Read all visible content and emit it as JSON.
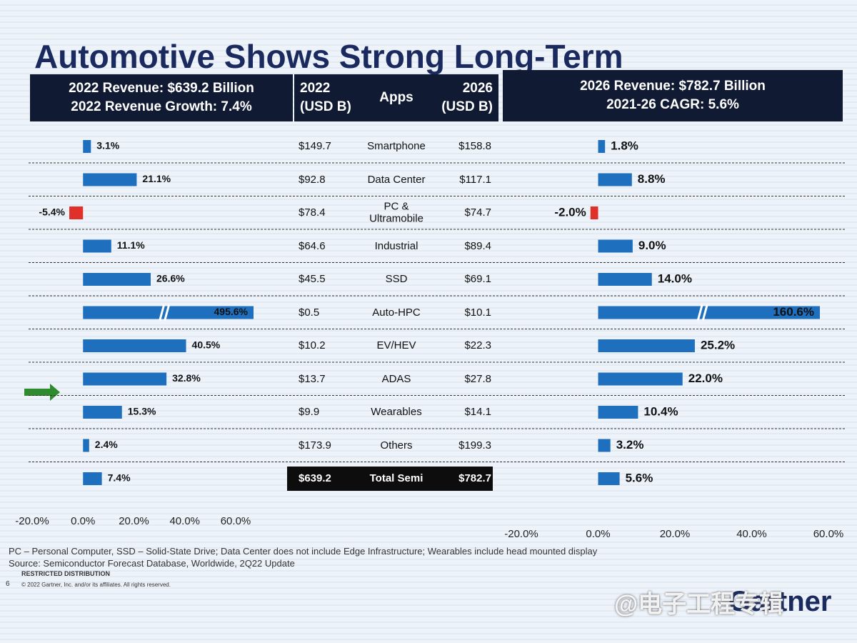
{
  "title": "Automotive Shows Strong Long-Term",
  "table": {
    "header": [
      [
        "2022",
        "(USD B)"
      ],
      "Apps",
      [
        "2026",
        "(USD B)"
      ]
    ],
    "rows": [
      [
        "$149.7",
        "Smartphone",
        "$158.8"
      ],
      [
        "$92.8",
        "Data Center",
        "$117.1"
      ],
      [
        "$78.4",
        "PC & Ultramobile",
        "$74.7"
      ],
      [
        "$64.6",
        "Industrial",
        "$89.4"
      ],
      [
        "$45.5",
        "SSD",
        "$69.1"
      ],
      [
        "$0.5",
        "Auto-HPC",
        "$10.1"
      ],
      [
        "$10.2",
        "EV/HEV",
        "$22.3"
      ],
      [
        "$13.7",
        "ADAS",
        "$27.8"
      ],
      [
        "$9.9",
        "Wearables",
        "$14.1"
      ],
      [
        "$173.9",
        "Others",
        "$199.3"
      ],
      [
        "$639.2",
        "Total Semi",
        "$782.7"
      ]
    ]
  },
  "chart_data": [
    {
      "type": "hbar",
      "title": "2022 Revenue: $639.2 Billion",
      "subtitle": "2022 Revenue Growth: 7.4%",
      "values": [
        3.1,
        21.1,
        -5.4,
        11.1,
        26.6,
        495.6,
        40.5,
        32.8,
        15.3,
        2.4,
        7.4
      ],
      "value_labels": [
        "3.1%",
        "21.1%",
        "-5.4%",
        "11.1%",
        "26.6%",
        "495.6%",
        "40.5%",
        "32.8%",
        "15.3%",
        "2.4%",
        "7.4%"
      ],
      "color": "#1f6fbf",
      "negative_color": "#e0302a",
      "xlim": [
        -20,
        60
      ],
      "xticks": [
        {
          "value": -20,
          "label": "-20.0%"
        },
        {
          "value": 0,
          "label": "0.0%"
        },
        {
          "value": 20,
          "label": "20.0%"
        },
        {
          "value": 40,
          "label": "40.0%"
        },
        {
          "value": 60,
          "label": "60.0%"
        }
      ]
    },
    {
      "type": "hbar",
      "title": "2026 Revenue: $782.7 Billion",
      "subtitle": "2021-26 CAGR: 5.6%",
      "values": [
        1.8,
        8.8,
        -2.0,
        9.0,
        14.0,
        160.6,
        25.2,
        22.0,
        10.4,
        3.2,
        5.6
      ],
      "value_labels": [
        "1.8%",
        "8.8%",
        "-2.0%",
        "9.0%",
        "14.0%",
        "160.6%",
        "25.2%",
        "22.0%",
        "10.4%",
        "3.2%",
        "5.6%"
      ],
      "color": "#1f6fbf",
      "negative_color": "#e0302a",
      "xlim": [
        -20,
        60
      ],
      "xticks": [
        {
          "value": -20,
          "label": "-20.0%"
        },
        {
          "value": 0,
          "label": "0.0%"
        },
        {
          "value": 20,
          "label": "20.0%"
        },
        {
          "value": 40,
          "label": "40.0%"
        },
        {
          "value": 60,
          "label": "60.0%"
        }
      ]
    }
  ],
  "footnotes": [
    "PC – Personal Computer, SSD – Solid-State Drive; Data Center does not include Edge Infrastructure; Wearables include head mounted display",
    "Source: Semiconductor Forecast Database, Worldwide, 2Q22 Update"
  ],
  "restricted": "RESTRICTED DISTRIBUTION",
  "page_number": "6",
  "copyright": "© 2022 Gartner, Inc. and/or its affiliates. All rights reserved.",
  "logo": "Gartner",
  "watermark": "@电子工程专辑"
}
